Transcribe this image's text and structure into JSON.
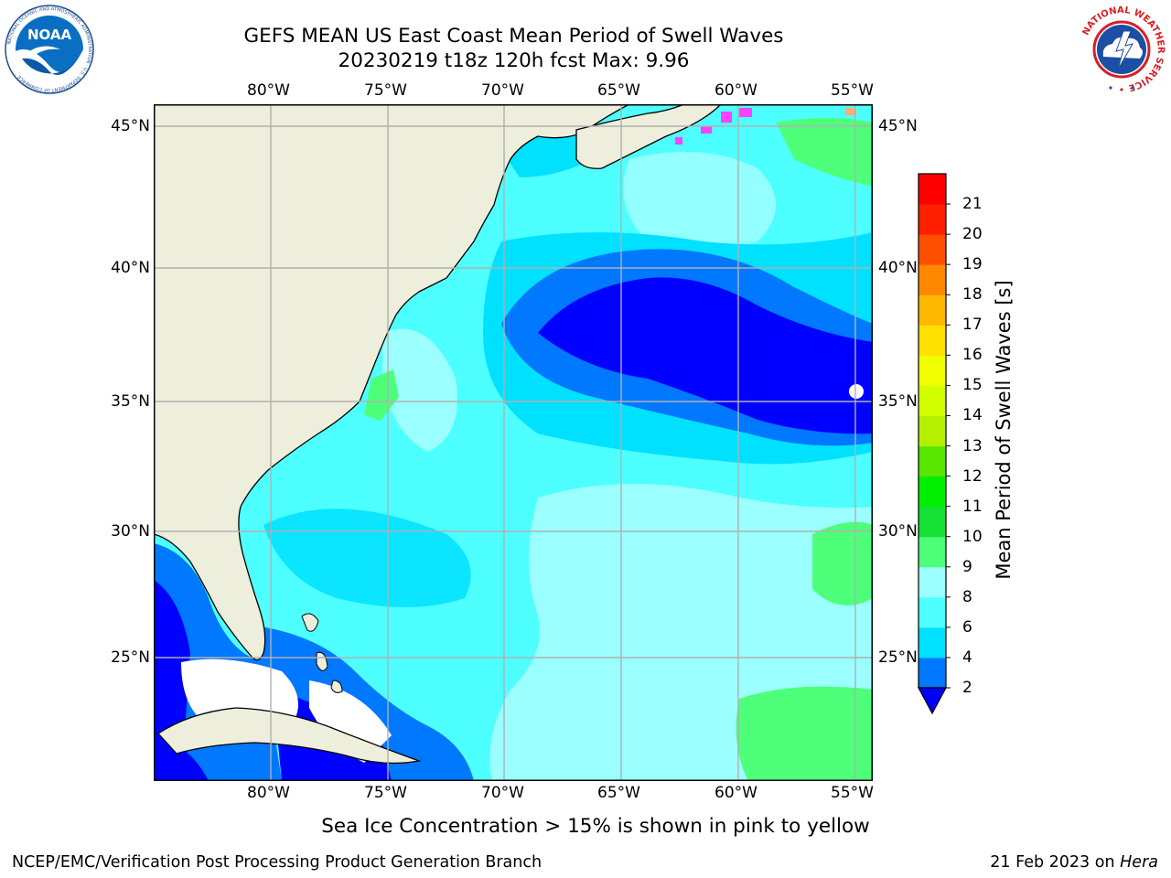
{
  "header": {
    "title_line1": "GEFS MEAN US East Coast Mean Period of Swell Waves",
    "title_line2": "20230219 t18z 120h fcst   Max: 9.96"
  },
  "logos": {
    "left": {
      "name": "NOAA",
      "text": "NOAA",
      "ring_text": "NATIONAL OCEANIC AND ATMOSPHERIC ADMINISTRATION · U.S. DEPARTMENT OF COMMERCE",
      "color": "#0a6fc2"
    },
    "right": {
      "name": "National Weather Service",
      "ring_text": "NATIONAL WEATHER SERVICE",
      "color": "#d91e25"
    }
  },
  "map": {
    "projection": "Plate Carree",
    "extent": {
      "lon_min": -85,
      "lon_max": -54.3,
      "lat_min": 20.5,
      "lat_max": 45.8
    },
    "lon_ticks": [
      "80°W",
      "75°W",
      "70°W",
      "65°W",
      "60°W",
      "55°W"
    ],
    "lat_ticks": [
      "45°N",
      "40°N",
      "35°N",
      "30°N",
      "25°N"
    ],
    "grid": true,
    "land_color": "#eeeedd",
    "grid_color": "#b0b0b0"
  },
  "colorbar": {
    "label": "Mean Period of Swell Waves [s]",
    "ticks": [
      "2",
      "4",
      "6",
      "8",
      "9",
      "10",
      "11",
      "12",
      "13",
      "14",
      "15",
      "16",
      "17",
      "18",
      "19",
      "20",
      "21"
    ],
    "colors": [
      "#0032ff",
      "#0078ff",
      "#00e0ff",
      "#4effff",
      "#9bffff",
      "#4eff7a",
      "#15e033",
      "#00f000",
      "#5ae600",
      "#b4f000",
      "#d4ff00",
      "#f0ff00",
      "#ffe000",
      "#ffb800",
      "#ff8800",
      "#ff5000",
      "#ff2000",
      "#ff0000"
    ],
    "extend": "min",
    "under_color": "#0000ff"
  },
  "subtitle": "Sea Ice Concentration > 15% is shown in pink to yellow",
  "footer": {
    "left": "NCEP/EMC/Verification Post Processing Product Generation Branch",
    "right_date": "21 Feb 2023 on",
    "right_machine": "Hera"
  }
}
